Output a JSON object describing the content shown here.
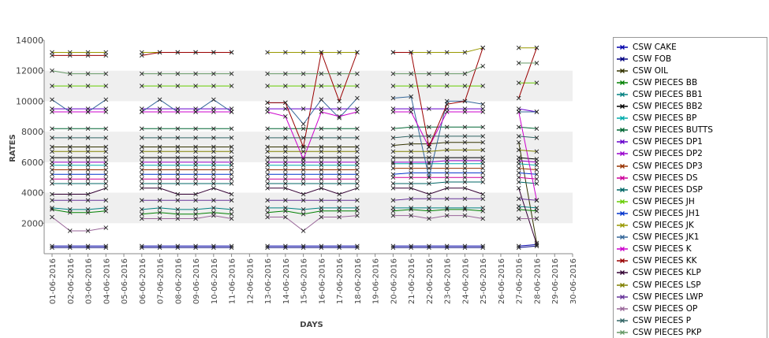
{
  "chart_data": {
    "type": "line",
    "xlabel": "DAYS",
    "ylabel": "RATES",
    "ylim": [
      0,
      14000
    ],
    "yticks": [
      2000,
      4000,
      6000,
      8000,
      10000,
      12000,
      14000
    ],
    "grid": "alternating horizontal bands",
    "legend_position": "right",
    "categories": [
      "01-06-2016",
      "02-06-2016",
      "03-06-2016",
      "04-06-2016",
      "05-06-2016",
      "06-06-2016",
      "07-06-2016",
      "08-06-2016",
      "09-06-2016",
      "10-06-2016",
      "11-06-2016",
      "12-06-2016",
      "13-06-2016",
      "14-06-2016",
      "15-06-2016",
      "16-06-2016",
      "17-06-2016",
      "18-06-2016",
      "19-06-2016",
      "20-06-2016",
      "21-06-2016",
      "22-06-2016",
      "23-06-2016",
      "24-06-2016",
      "25-06-2016",
      "26-06-2016",
      "27-06-2016",
      "28-06-2016",
      "29-06-2016",
      "30-06-2016"
    ],
    "series": [
      {
        "name": "CSW CAKE",
        "color": "#0000aa",
        "values": [
          500,
          500,
          500,
          500,
          null,
          500,
          500,
          500,
          500,
          500,
          500,
          null,
          500,
          500,
          500,
          500,
          500,
          500,
          null,
          500,
          500,
          500,
          500,
          500,
          500,
          null,
          500,
          600,
          null,
          null
        ]
      },
      {
        "name": "CSW FOB",
        "color": "#000080",
        "values": [
          400,
          400,
          400,
          400,
          null,
          400,
          400,
          400,
          400,
          400,
          400,
          null,
          400,
          400,
          400,
          400,
          400,
          400,
          null,
          400,
          400,
          400,
          400,
          400,
          400,
          null,
          400,
          500,
          null,
          null
        ]
      },
      {
        "name": "CSW OIL",
        "color": "#333300",
        "values": [
          7000,
          7000,
          7000,
          7000,
          null,
          7000,
          7000,
          7000,
          7000,
          7000,
          7000,
          null,
          7000,
          7000,
          7000,
          7000,
          7000,
          7000,
          null,
          7100,
          7200,
          7200,
          7300,
          7300,
          7300,
          null,
          7300,
          700,
          null,
          null
        ]
      },
      {
        "name": "CSW PIECES BB",
        "color": "#008000",
        "values": [
          2900,
          2700,
          2700,
          2800,
          null,
          2600,
          2700,
          2600,
          2600,
          2700,
          2600,
          null,
          2700,
          2800,
          2600,
          2800,
          2800,
          2800,
          null,
          2800,
          2900,
          2800,
          2900,
          2900,
          2800,
          null,
          2900,
          2800,
          null,
          null
        ]
      },
      {
        "name": "CSW PIECES BB1",
        "color": "#008080",
        "values": [
          3000,
          2900,
          2900,
          3000,
          null,
          2900,
          3000,
          2900,
          2900,
          3000,
          2900,
          null,
          3000,
          3000,
          2900,
          3000,
          3000,
          3000,
          null,
          3000,
          3000,
          3000,
          3000,
          3000,
          3000,
          null,
          3100,
          3000,
          null,
          null
        ]
      },
      {
        "name": "CSW PIECES BB2",
        "color": "#000000",
        "values": [
          6300,
          6300,
          6300,
          6300,
          null,
          6300,
          6300,
          6300,
          6300,
          6300,
          6300,
          null,
          6300,
          6300,
          6300,
          6300,
          6300,
          6300,
          null,
          6300,
          6300,
          6300,
          6300,
          6300,
          6300,
          null,
          6300,
          6200,
          null,
          null
        ]
      },
      {
        "name": "CSW PIECES BP",
        "color": "#00aaaa",
        "values": [
          5800,
          5800,
          5800,
          5800,
          null,
          5800,
          5800,
          5800,
          5800,
          5800,
          5800,
          null,
          5800,
          5800,
          5800,
          5800,
          5800,
          5800,
          null,
          5900,
          5900,
          5900,
          5900,
          5900,
          5900,
          null,
          5900,
          5800,
          null,
          null
        ]
      },
      {
        "name": "CSW PIECES BUTTS",
        "color": "#006633",
        "values": [
          8200,
          8200,
          8200,
          8200,
          null,
          8200,
          8200,
          8200,
          8200,
          8200,
          8200,
          null,
          8200,
          8200,
          8200,
          8200,
          8200,
          8200,
          null,
          8200,
          8300,
          8300,
          8300,
          8300,
          8300,
          null,
          8300,
          8200,
          null,
          null
        ]
      },
      {
        "name": "CSW PIECES DP1",
        "color": "#6600cc",
        "values": [
          9500,
          9500,
          9500,
          9500,
          null,
          9500,
          9500,
          9500,
          9500,
          9500,
          9500,
          null,
          9500,
          9500,
          9500,
          9500,
          9500,
          9500,
          null,
          9500,
          9500,
          9500,
          9500,
          9500,
          9500,
          null,
          9500,
          9300,
          null,
          null
        ]
      },
      {
        "name": "CSW PIECES DP2",
        "color": "#9900cc",
        "values": [
          6000,
          6000,
          6000,
          6000,
          null,
          6000,
          6000,
          6000,
          6000,
          6000,
          6000,
          null,
          6000,
          6000,
          6000,
          6000,
          6000,
          6000,
          null,
          6000,
          6000,
          6000,
          6100,
          6100,
          6100,
          null,
          6100,
          6000,
          null,
          null
        ]
      },
      {
        "name": "CSW PIECES DP3",
        "color": "#993300",
        "values": [
          5500,
          5500,
          5500,
          5500,
          null,
          5500,
          5500,
          5500,
          5500,
          5500,
          5500,
          null,
          5500,
          5500,
          5500,
          5500,
          5500,
          5500,
          null,
          5600,
          5600,
          5600,
          5600,
          5600,
          5600,
          null,
          5600,
          5500,
          null,
          null
        ]
      },
      {
        "name": "CSW PIECES DS",
        "color": "#cc0099",
        "values": [
          4900,
          4900,
          4900,
          4900,
          null,
          4900,
          4900,
          4900,
          4900,
          4900,
          4900,
          null,
          4900,
          4900,
          4900,
          4900,
          4900,
          4900,
          null,
          5000,
          5000,
          5000,
          5000,
          5000,
          5000,
          null,
          5000,
          4900,
          null,
          null
        ]
      },
      {
        "name": "CSW PIECES DSP",
        "color": "#006666",
        "values": [
          4600,
          4600,
          4600,
          4600,
          null,
          4600,
          4600,
          4600,
          4600,
          4600,
          4600,
          null,
          4600,
          4600,
          4600,
          4600,
          4600,
          4600,
          null,
          4600,
          4600,
          4600,
          4700,
          4700,
          4700,
          null,
          4700,
          4600,
          null,
          null
        ]
      },
      {
        "name": "CSW PIECES JH",
        "color": "#66cc00",
        "values": [
          11000,
          11000,
          11000,
          11000,
          null,
          11000,
          11000,
          11000,
          11000,
          11000,
          11000,
          null,
          11000,
          11000,
          11000,
          11000,
          11000,
          11000,
          null,
          11000,
          11000,
          11000,
          11000,
          11000,
          11000,
          null,
          11200,
          11200,
          null,
          null
        ]
      },
      {
        "name": "CSW PIECES JH1",
        "color": "#0033cc",
        "values": [
          5200,
          5200,
          5200,
          5200,
          null,
          5200,
          5200,
          5200,
          5200,
          5200,
          5200,
          null,
          5200,
          5200,
          5200,
          5200,
          5200,
          5200,
          null,
          5200,
          5300,
          5300,
          5300,
          5300,
          5300,
          null,
          5300,
          5200,
          null,
          null
        ]
      },
      {
        "name": "CSW PIECES JK",
        "color": "#999900",
        "values": [
          13200,
          13200,
          13200,
          13200,
          null,
          13200,
          13200,
          13200,
          13200,
          13200,
          13200,
          null,
          13200,
          13200,
          13200,
          13200,
          13200,
          13200,
          null,
          13200,
          13200,
          13200,
          13200,
          13200,
          13500,
          null,
          13500,
          13500,
          null,
          null
        ]
      },
      {
        "name": "CSW PIECES JK1",
        "color": "#336699",
        "values": [
          10100,
          9300,
          9300,
          10100,
          null,
          9300,
          10100,
          9300,
          9300,
          10100,
          9300,
          null,
          9900,
          9900,
          8500,
          10100,
          8900,
          10200,
          null,
          10200,
          10300,
          5000,
          10000,
          10000,
          9800,
          null,
          9300,
          9300,
          null,
          null
        ]
      },
      {
        "name": "CSW PIECES K",
        "color": "#cc00cc",
        "values": [
          9300,
          9300,
          9300,
          9300,
          null,
          9300,
          9300,
          9300,
          9300,
          9300,
          9300,
          null,
          9300,
          9000,
          6200,
          9300,
          9000,
          9300,
          null,
          9300,
          9300,
          7000,
          9300,
          9300,
          9300,
          null,
          9300,
          3500,
          null,
          null
        ]
      },
      {
        "name": "CSW PIECES KK",
        "color": "#990000",
        "values": [
          13000,
          13000,
          13000,
          13000,
          null,
          13000,
          13200,
          13200,
          13200,
          13200,
          13200,
          null,
          9900,
          9900,
          7000,
          13200,
          10000,
          13200,
          null,
          13200,
          13200,
          7000,
          9800,
          10000,
          13500,
          null,
          10200,
          13500,
          null,
          null
        ]
      },
      {
        "name": "CSW PIECES KLP",
        "color": "#330033",
        "values": [
          3900,
          3900,
          3900,
          4300,
          null,
          4300,
          4300,
          3900,
          3900,
          4300,
          3900,
          null,
          4300,
          4300,
          3900,
          4300,
          3900,
          4300,
          null,
          4300,
          4300,
          3900,
          4300,
          4300,
          3900,
          null,
          4300,
          600,
          null,
          null
        ]
      },
      {
        "name": "CSW PIECES LSP",
        "color": "#808000",
        "values": [
          6700,
          6700,
          6700,
          6700,
          null,
          6700,
          6700,
          6700,
          6700,
          6700,
          6700,
          null,
          6700,
          6700,
          6700,
          6700,
          6700,
          6700,
          null,
          6700,
          6700,
          6700,
          6800,
          6800,
          6800,
          null,
          6800,
          6700,
          null,
          null
        ]
      },
      {
        "name": "CSW PIECES LWP",
        "color": "#663399",
        "values": [
          3500,
          3500,
          3500,
          3500,
          null,
          3500,
          3500,
          3500,
          3500,
          3500,
          3500,
          null,
          3500,
          3500,
          3500,
          3500,
          3500,
          3500,
          null,
          3500,
          3600,
          3600,
          3600,
          3600,
          3600,
          null,
          3600,
          3500,
          null,
          null
        ]
      },
      {
        "name": "CSW PIECES OP",
        "color": "#996699",
        "values": [
          2400,
          1500,
          1500,
          1700,
          null,
          2300,
          2300,
          2300,
          2300,
          2500,
          2300,
          null,
          2400,
          2400,
          1500,
          2400,
          2400,
          2500,
          null,
          2500,
          2500,
          2300,
          2500,
          2500,
          2300,
          null,
          2300,
          2300,
          null,
          null
        ]
      },
      {
        "name": "CSW PIECES P",
        "color": "#336666",
        "values": [
          7600,
          7600,
          7600,
          7600,
          null,
          7600,
          7600,
          7600,
          7600,
          7600,
          7600,
          null,
          7600,
          7600,
          7600,
          7600,
          7600,
          7600,
          null,
          7600,
          7700,
          7700,
          7700,
          7700,
          7700,
          null,
          7700,
          7600,
          null,
          null
        ]
      },
      {
        "name": "CSW PIECES PKP",
        "color": "#669966",
        "values": [
          12000,
          11800,
          11800,
          11800,
          null,
          11800,
          11800,
          11800,
          11800,
          11800,
          11800,
          null,
          11800,
          11800,
          11800,
          11800,
          11800,
          11800,
          null,
          11800,
          11800,
          11800,
          11800,
          11800,
          12300,
          null,
          12500,
          12500,
          null,
          null
        ]
      }
    ]
  }
}
